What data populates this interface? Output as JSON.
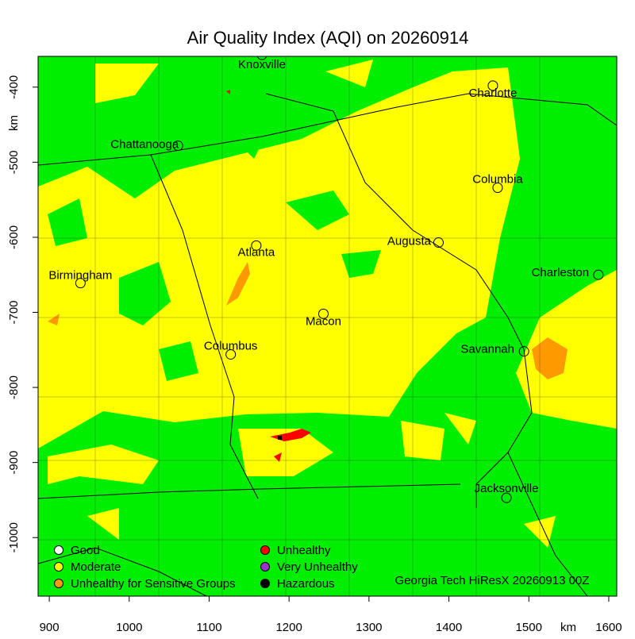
{
  "map": {
    "title": "Air Quality Index (AQI) on 20260914",
    "x_label": "km",
    "y_label": "km",
    "xlim": [
      886,
      1610
    ],
    "ylim": [
      -1078,
      -359
    ],
    "xticks": [
      900,
      1000,
      1100,
      1200,
      1300,
      1400,
      1500,
      1600
    ],
    "yticks": [
      -1000,
      -900,
      -800,
      -700,
      -600,
      -500,
      -400
    ],
    "cities": [
      {
        "name": "Knoxville",
        "x": 1166,
        "y": -357
      },
      {
        "name": "Charlotte",
        "x": 1455,
        "y": -398
      },
      {
        "name": "Chattanooga",
        "x": 1061,
        "y": -478
      },
      {
        "name": "Columbia",
        "x": 1461,
        "y": -534
      },
      {
        "name": "Augusta",
        "x": 1387,
        "y": -607
      },
      {
        "name": "Atlanta",
        "x": 1159,
        "y": -611
      },
      {
        "name": "Charleston",
        "x": 1587,
        "y": -650
      },
      {
        "name": "Birmingham",
        "x": 939,
        "y": -661
      },
      {
        "name": "Macon",
        "x": 1243,
        "y": -702
      },
      {
        "name": "Columbus",
        "x": 1127,
        "y": -756
      },
      {
        "name": "Savannah",
        "x": 1494,
        "y": -752
      },
      {
        "name": "Jacksonville",
        "x": 1472,
        "y": -947
      }
    ],
    "legend": [
      {
        "label": "Good",
        "color": "#ffffff"
      },
      {
        "label": "Moderate",
        "color": "#ffff00"
      },
      {
        "label": "Unhealthy for Sensitive Groups",
        "color": "#ff9900"
      },
      {
        "label": "Unhealthy",
        "color": "#ff0000"
      },
      {
        "label": "Very Unhealthy",
        "color": "#9933cc"
      },
      {
        "label": "Hazardous",
        "color": "#000000"
      }
    ],
    "credit": "Georgia Tech HiResX 20260913 00Z"
  }
}
